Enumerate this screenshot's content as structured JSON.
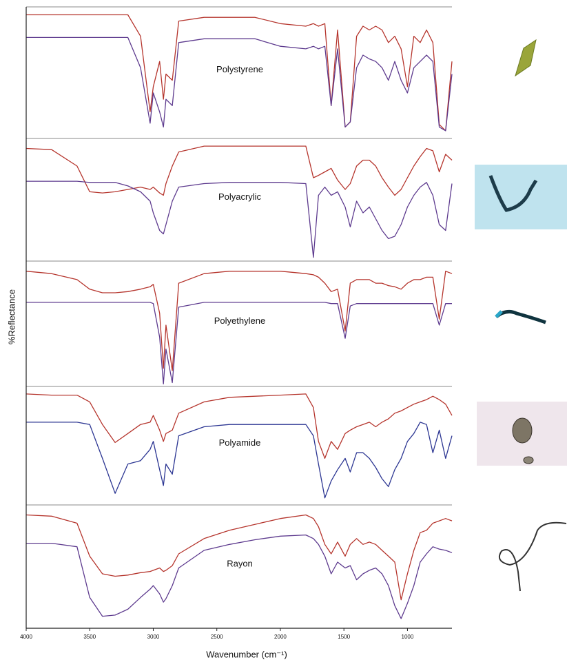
{
  "chart_data": {
    "type": "line",
    "xlabel": "Wavenumber (cm⁻¹)",
    "ylabel": "%Reflectance",
    "xlim": [
      4000,
      650
    ],
    "xticks": [
      4000,
      3500,
      3000,
      2500,
      2000,
      1500,
      1000
    ],
    "x": [
      4000,
      3800,
      3600,
      3500,
      3400,
      3300,
      3200,
      3100,
      3025,
      3000,
      2950,
      2920,
      2900,
      2850,
      2800,
      2600,
      2400,
      2200,
      2000,
      1800,
      1740,
      1700,
      1650,
      1600,
      1550,
      1490,
      1450,
      1400,
      1350,
      1300,
      1250,
      1200,
      1150,
      1100,
      1050,
      1000,
      950,
      900,
      850,
      800,
      750,
      700,
      650
    ],
    "ylim": [
      0,
      100
    ],
    "panels": [
      {
        "label": "Polystyrene",
        "series": [
          {
            "color": "#b5342c",
            "values": [
              97,
              97,
              97,
              97,
              97,
              97,
              97,
              80,
              20,
              40,
              60,
              30,
              50,
              45,
              92,
              95,
              95,
              95,
              90,
              88,
              90,
              88,
              90,
              25,
              85,
              8,
              12,
              80,
              88,
              85,
              88,
              85,
              75,
              80,
              70,
              40,
              80,
              75,
              85,
              75,
              10,
              5,
              60
            ]
          },
          {
            "color": "#5d3a8e",
            "values": [
              79,
              79,
              79,
              79,
              79,
              79,
              79,
              55,
              11,
              35,
              20,
              8,
              30,
              25,
              75,
              78,
              78,
              78,
              72,
              70,
              72,
              70,
              72,
              25,
              70,
              8,
              12,
              55,
              65,
              62,
              60,
              55,
              45,
              60,
              45,
              35,
              55,
              60,
              65,
              60,
              8,
              5,
              50
            ]
          }
        ]
      },
      {
        "label": "Polyacrylic",
        "series": [
          {
            "color": "#b5342c",
            "values": [
              95,
              94,
              80,
              58,
              57,
              58,
              60,
              62,
              60,
              62,
              57,
              55,
              65,
              80,
              92,
              97,
              97,
              97,
              97,
              97,
              70,
              72,
              75,
              78,
              68,
              60,
              65,
              80,
              85,
              85,
              80,
              70,
              62,
              55,
              60,
              70,
              80,
              88,
              95,
              93,
              75,
              90,
              85
            ]
          },
          {
            "color": "#5d3a8e",
            "values": [
              67,
              67,
              67,
              66,
              66,
              66,
              63,
              58,
              50,
              40,
              25,
              22,
              30,
              50,
              62,
              65,
              66,
              66,
              66,
              65,
              2,
              55,
              62,
              55,
              58,
              45,
              28,
              50,
              40,
              45,
              35,
              25,
              18,
              20,
              30,
              45,
              55,
              62,
              66,
              55,
              30,
              25,
              65
            ]
          }
        ]
      },
      {
        "label": "Polyethylene",
        "series": [
          {
            "color": "#b5342c",
            "values": [
              95,
              93,
              88,
              80,
              77,
              77,
              78,
              80,
              82,
              84,
              60,
              14,
              50,
              12,
              85,
              93,
              95,
              95,
              95,
              93,
              92,
              90,
              85,
              78,
              80,
              45,
              85,
              88,
              88,
              88,
              85,
              85,
              83,
              82,
              80,
              85,
              88,
              88,
              90,
              90,
              55,
              95,
              93
            ]
          },
          {
            "color": "#5d3a8e",
            "values": [
              69,
              69,
              69,
              69,
              69,
              69,
              69,
              69,
              69,
              68,
              40,
              1,
              30,
              2,
              65,
              69,
              69,
              69,
              69,
              69,
              69,
              69,
              69,
              68,
              68,
              39,
              66,
              68,
              68,
              68,
              68,
              68,
              68,
              68,
              68,
              68,
              68,
              68,
              68,
              68,
              50,
              68,
              68
            ]
          }
        ]
      },
      {
        "label": "Polyamide",
        "series": [
          {
            "color": "#b5342c",
            "values": [
              97,
              96,
              96,
              90,
              70,
              54,
              62,
              70,
              72,
              78,
              65,
              55,
              62,
              65,
              80,
              90,
              94,
              95,
              96,
              97,
              85,
              55,
              40,
              55,
              48,
              62,
              65,
              68,
              70,
              72,
              68,
              72,
              75,
              80,
              82,
              85,
              88,
              90,
              92,
              95,
              92,
              88,
              78
            ]
          },
          {
            "color": "#2b3592",
            "values": [
              72,
              72,
              72,
              70,
              40,
              9,
              35,
              38,
              48,
              55,
              30,
              16,
              35,
              26,
              60,
              68,
              70,
              70,
              70,
              70,
              60,
              35,
              5,
              20,
              30,
              40,
              28,
              45,
              45,
              40,
              32,
              22,
              15,
              30,
              40,
              55,
              62,
              72,
              70,
              45,
              65,
              40,
              60
            ]
          }
        ]
      },
      {
        "label": "Rayon",
        "series": [
          {
            "color": "#b5342c",
            "values": [
              95,
              94,
              88,
              60,
              45,
              43,
              44,
              46,
              47,
              48,
              50,
              47,
              48,
              52,
              62,
              75,
              82,
              87,
              92,
              95,
              92,
              85,
              70,
              62,
              72,
              60,
              70,
              75,
              70,
              72,
              70,
              65,
              60,
              55,
              23,
              45,
              65,
              80,
              82,
              88,
              90,
              92,
              90
            ]
          },
          {
            "color": "#5d3a8e",
            "values": [
              71,
              71,
              68,
              25,
              9,
              10,
              15,
              25,
              32,
              35,
              28,
              21,
              24,
              35,
              50,
              65,
              70,
              74,
              77,
              78,
              75,
              70,
              60,
              45,
              55,
              50,
              52,
              40,
              45,
              48,
              50,
              45,
              35,
              18,
              7,
              20,
              35,
              55,
              62,
              68,
              66,
              65,
              63
            ]
          }
        ]
      }
    ]
  }
}
